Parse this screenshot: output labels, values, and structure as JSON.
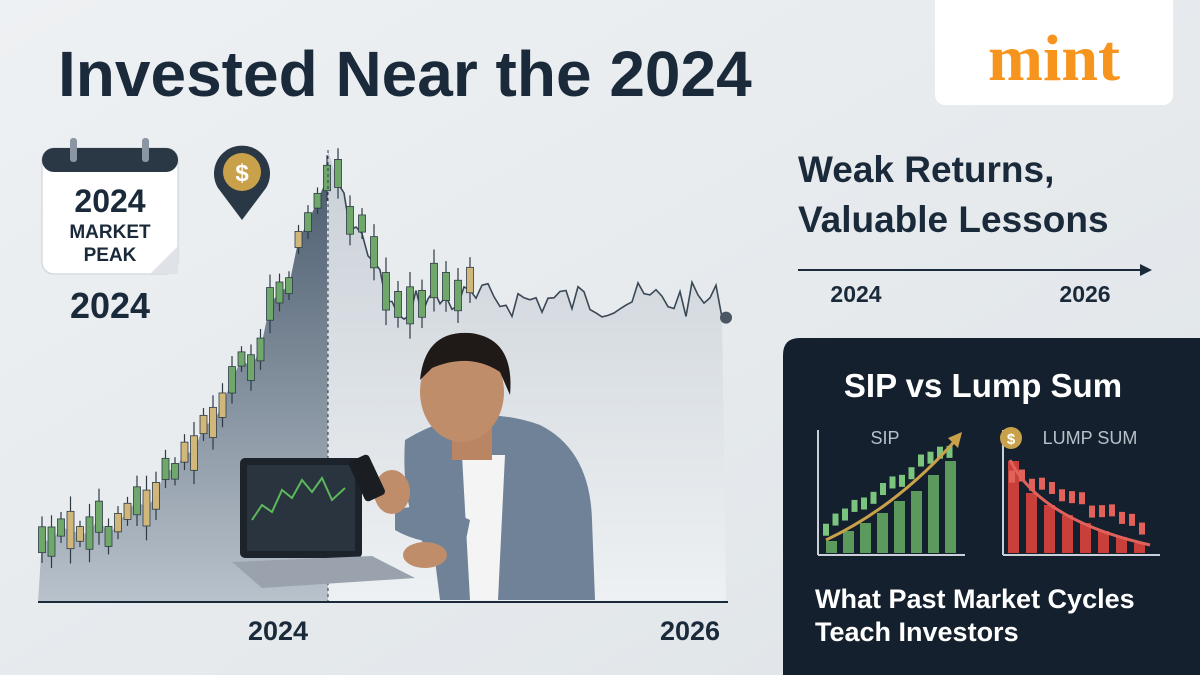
{
  "header": {
    "title": "Invested Near the 2024",
    "logo": "mint"
  },
  "calendar": {
    "year": "2024",
    "line1": "MARKET",
    "line2": "PEAK",
    "caption": "2024",
    "pin": "$"
  },
  "chart": {
    "x_start": "2024",
    "x_end": "2026"
  },
  "takeaway": {
    "line1": "Weak Returns,",
    "line2": "Valuable Lessons",
    "start": "2024",
    "end": "2026"
  },
  "panel": {
    "title": "SIP vs Lump Sum",
    "left": "SIP",
    "right": "LUMP SUM",
    "coin": "$",
    "footer1": "What Past Market Cycles",
    "footer2": "Teach Investors"
  }
}
